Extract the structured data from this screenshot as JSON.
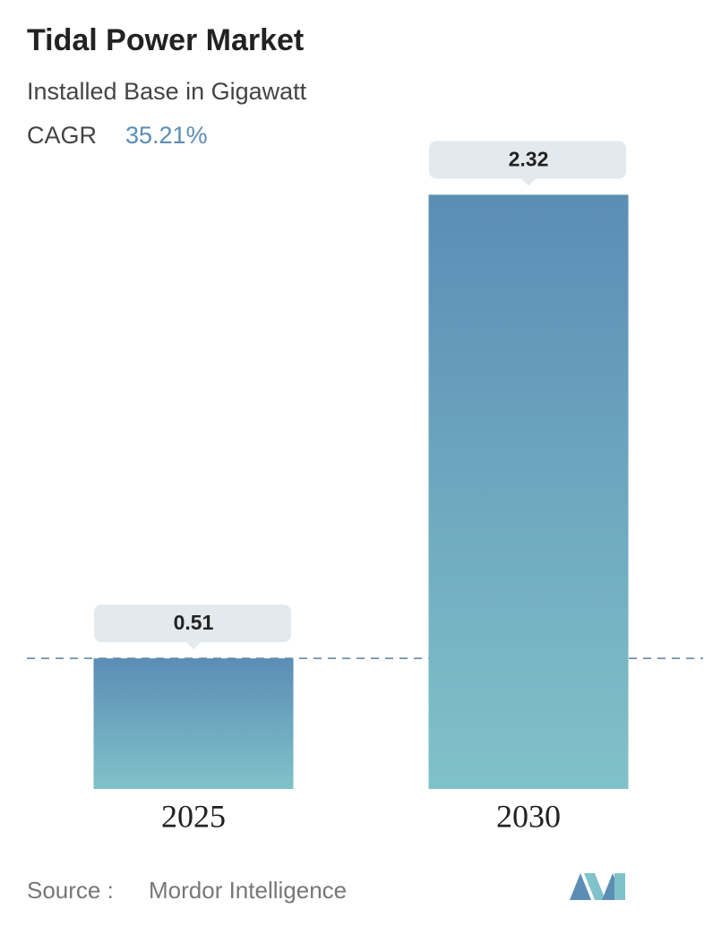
{
  "chart_data": {
    "type": "bar",
    "title": "Tidal Power Market",
    "subtitle": "Installed Base in Gigawatt",
    "cagr_label": "CAGR",
    "cagr": "35.21%",
    "categories": [
      "2025",
      "2030"
    ],
    "values": [
      0.51,
      2.32
    ],
    "color": [
      "#5b8db5",
      "#80c2c9"
    ],
    "source_label": "Source :",
    "source": "Mordor Intelligence"
  }
}
